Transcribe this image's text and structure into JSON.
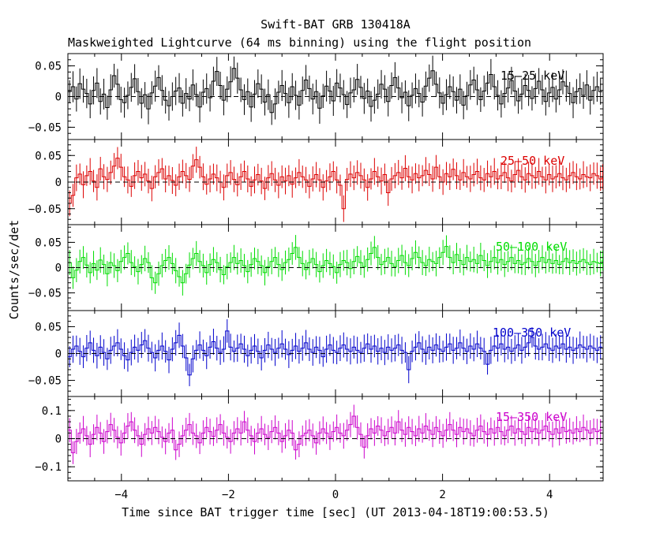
{
  "title": "Swift-BAT GRB 130418A",
  "subtitle": "Maskweighted Lightcurve (64 ms binning) using the flight position",
  "chart_data": {
    "type": "line",
    "title": "Swift-BAT GRB 130418A",
    "subtitle": "Maskweighted Lightcurve (64 ms binning) using the flight position",
    "xlabel": "Time since BAT trigger time [sec] (UT 2013-04-18T19:00:53.5)",
    "ylabel": "Counts/sec/det",
    "xlim": [
      -5,
      5
    ],
    "x_ticks": [
      -4,
      -2,
      0,
      2,
      4
    ],
    "x_tick_labels": [
      "−4",
      "−2",
      "0",
      "2",
      "4"
    ],
    "bin_width": 0.064,
    "x_start": -5.0,
    "plot_style": "histogram steps with vertical error bars, dashed zero line",
    "panels": [
      {
        "name": "15–25 keV",
        "color": "#000000",
        "ylim": [
          -0.07,
          0.07
        ],
        "y_ticks": [
          -0.05,
          0,
          0.05
        ],
        "y_tick_labels": [
          "−0.05",
          "0",
          "0.05"
        ],
        "error": 0.022,
        "values": [
          0.008,
          0.016,
          -0.004,
          0.021,
          0.012,
          0.005,
          -0.012,
          0.01,
          0.022,
          -0.008,
          0.004,
          -0.018,
          0.011,
          0.034,
          0.02,
          -0.005,
          -0.01,
          0.002,
          0.015,
          0.029,
          0.008,
          -0.011,
          0.003,
          -0.02,
          0.006,
          0.017,
          0.031,
          0.01,
          -0.006,
          -0.015,
          0.0,
          0.009,
          0.014,
          -0.011,
          0.005,
          -0.004,
          0.019,
          0.003,
          -0.017,
          0.007,
          0.013,
          -0.002,
          0.025,
          0.041,
          0.018,
          -0.006,
          0.012,
          0.024,
          0.046,
          0.03,
          0.011,
          -0.005,
          0.008,
          -0.017,
          0.004,
          0.021,
          0.012,
          -0.009,
          0.003,
          -0.026,
          -0.012,
          0.007,
          0.018,
          0.005,
          -0.01,
          0.016,
          0.002,
          -0.014,
          0.01,
          0.027,
          0.013,
          -0.004,
          0.008,
          -0.019,
          0.001,
          0.017,
          0.009,
          -0.007,
          0.022,
          0.014,
          0.003,
          -0.013,
          0.006,
          0.011,
          0.028,
          0.015,
          -0.003,
          0.009,
          -0.016,
          -0.006,
          0.004,
          0.02,
          0.012,
          -0.008,
          0.018,
          0.031,
          0.014,
          -0.002,
          0.007,
          -0.015,
          0.002,
          0.013,
          0.005,
          -0.009,
          0.017,
          0.03,
          0.042,
          0.02,
          0.006,
          -0.011,
          0.003,
          0.016,
          0.008,
          -0.006,
          0.012,
          -0.014,
          0.001,
          0.019,
          0.027,
          0.011,
          -0.005,
          0.009,
          0.022,
          0.036,
          0.016,
          0.002,
          -0.012,
          0.005,
          0.014,
          0.026,
          0.009,
          -0.007,
          0.004,
          0.018,
          0.01,
          -0.003,
          0.013,
          0.025,
          0.011,
          -0.008,
          0.006,
          0.015,
          -0.004,
          0.011,
          0.024,
          0.017,
          0.005,
          -0.01,
          0.008,
          0.013,
          0.002,
          0.019,
          -0.006,
          0.01,
          0.016,
          0.008
        ]
      },
      {
        "name": "25–50 keV",
        "color": "#dd0000",
        "ylim": [
          -0.08,
          0.08
        ],
        "y_ticks": [
          -0.05,
          0,
          0.05
        ],
        "y_tick_labels": [
          "−0.05",
          "0",
          "0.05"
        ],
        "error": 0.022,
        "values": [
          -0.04,
          -0.025,
          0.008,
          0.015,
          -0.005,
          0.012,
          0.02,
          0.002,
          -0.01,
          0.025,
          0.01,
          0.005,
          0.018,
          0.03,
          0.045,
          0.028,
          0.01,
          0.004,
          -0.008,
          0.012,
          0.02,
          0.008,
          0.015,
          0.002,
          -0.012,
          0.01,
          0.018,
          0.025,
          0.006,
          0.012,
          0.003,
          -0.006,
          0.01,
          0.02,
          0.012,
          0.005,
          0.03,
          0.042,
          0.028,
          0.01,
          -0.004,
          0.006,
          0.015,
          0.008,
          0.0,
          -0.01,
          0.012,
          0.018,
          0.005,
          -0.005,
          0.01,
          0.02,
          0.006,
          -0.008,
          0.004,
          0.014,
          0.002,
          -0.012,
          0.008,
          0.016,
          0.004,
          -0.006,
          0.01,
          0.002,
          0.012,
          -0.004,
          0.008,
          0.018,
          0.01,
          0.004,
          -0.008,
          0.006,
          0.014,
          0.004,
          -0.01,
          0.002,
          0.01,
          0.02,
          0.004,
          -0.006,
          -0.05,
          0.005,
          0.015,
          0.008,
          0.018,
          0.012,
          0.004,
          -0.01,
          0.006,
          0.02,
          0.01,
          0.002,
          0.014,
          -0.02,
          0.006,
          0.012,
          0.018,
          0.008,
          0.026,
          0.01,
          0.004,
          0.016,
          0.008,
          0.012,
          0.022,
          0.014,
          0.006,
          0.028,
          0.01,
          0.0,
          0.016,
          0.01,
          0.024,
          0.012,
          0.004,
          0.018,
          0.01,
          0.006,
          0.014,
          0.02,
          0.008,
          0.004,
          0.016,
          0.01,
          0.02,
          0.006,
          0.012,
          0.018,
          0.008,
          0.002,
          0.014,
          0.022,
          0.01,
          0.004,
          0.016,
          0.012,
          0.008,
          0.02,
          0.01,
          0.004,
          0.014,
          0.006,
          0.01,
          0.016,
          0.008,
          0.004,
          0.012,
          0.018,
          0.01,
          0.006,
          0.014,
          0.01,
          0.008,
          0.016,
          0.012,
          0.006,
          0.01,
          0.014
        ]
      },
      {
        "name": "50–100 keV",
        "color": "#00dd00",
        "ylim": [
          -0.085,
          0.085
        ],
        "y_ticks": [
          -0.05,
          0,
          0.05
        ],
        "y_tick_labels": [
          "−0.05",
          "0",
          "0.05"
        ],
        "error": 0.022,
        "values": [
          0.01,
          -0.02,
          -0.005,
          0.012,
          0.02,
          0.005,
          -0.01,
          0.008,
          -0.005,
          0.015,
          0.006,
          -0.012,
          0.01,
          0.004,
          -0.006,
          0.012,
          0.02,
          0.028,
          0.01,
          0.002,
          -0.008,
          0.006,
          0.018,
          0.01,
          -0.02,
          -0.03,
          -0.012,
          0.004,
          0.014,
          0.02,
          0.008,
          -0.006,
          -0.018,
          -0.03,
          -0.012,
          0.005,
          0.018,
          0.028,
          0.012,
          0.004,
          -0.01,
          0.006,
          0.016,
          0.01,
          -0.004,
          -0.014,
          0.002,
          0.01,
          0.02,
          0.008,
          0.014,
          0.004,
          -0.008,
          0.006,
          0.018,
          0.012,
          0.004,
          -0.01,
          0.002,
          0.012,
          0.02,
          0.006,
          -0.004,
          0.01,
          0.016,
          0.028,
          0.04,
          0.02,
          0.008,
          -0.004,
          0.01,
          0.018,
          0.006,
          -0.008,
          0.004,
          0.014,
          0.008,
          0.002,
          -0.01,
          0.006,
          0.014,
          0.01,
          -0.002,
          0.012,
          0.022,
          0.01,
          0.002,
          0.016,
          0.028,
          0.04,
          0.02,
          0.006,
          0.012,
          0.02,
          0.008,
          0.002,
          0.014,
          0.024,
          0.01,
          0.004,
          0.018,
          0.03,
          0.02,
          0.01,
          0.004,
          0.016,
          0.012,
          0.008,
          0.02,
          0.03,
          0.042,
          0.02,
          0.01,
          0.026,
          0.014,
          0.006,
          0.02,
          0.012,
          0.016,
          0.008,
          0.024,
          0.014,
          0.004,
          0.012,
          0.02,
          0.01,
          0.016,
          0.006,
          0.012,
          0.02,
          0.008,
          0.014,
          0.006,
          0.01,
          0.018,
          0.012,
          0.004,
          0.012,
          0.02,
          0.01,
          0.016,
          0.008,
          0.014,
          0.006,
          0.012,
          0.018,
          0.01,
          0.014,
          0.008,
          0.012,
          0.016,
          0.01,
          0.006,
          0.012,
          0.01,
          0.008,
          0.014,
          0.012
        ]
      },
      {
        "name": "100–350 keV",
        "color": "#0000cc",
        "ylim": [
          -0.08,
          0.08
        ],
        "y_ticks": [
          -0.05,
          0,
          0.05
        ],
        "y_tick_labels": [
          "−0.05",
          "0",
          "0.05"
        ],
        "error": 0.022,
        "values": [
          -0.006,
          0.008,
          0.014,
          0.004,
          -0.006,
          0.01,
          0.02,
          0.006,
          -0.004,
          0.012,
          0.002,
          -0.01,
          0.006,
          0.014,
          0.02,
          0.008,
          -0.004,
          -0.012,
          0.002,
          0.012,
          0.006,
          0.016,
          0.024,
          0.01,
          0.002,
          -0.008,
          0.006,
          0.014,
          0.004,
          -0.012,
          0.008,
          0.02,
          0.034,
          0.014,
          -0.008,
          -0.04,
          -0.01,
          0.006,
          0.016,
          0.006,
          -0.004,
          0.012,
          0.022,
          0.01,
          0.002,
          0.008,
          0.042,
          0.012,
          0.004,
          0.01,
          0.018,
          0.008,
          -0.004,
          0.006,
          0.014,
          0.004,
          -0.008,
          0.006,
          0.016,
          0.008,
          0.002,
          0.01,
          0.018,
          0.008,
          -0.002,
          0.006,
          0.014,
          0.004,
          0.01,
          0.02,
          0.008,
          0.002,
          0.012,
          0.006,
          -0.006,
          0.008,
          0.016,
          0.006,
          0.002,
          0.01,
          0.016,
          0.008,
          0.004,
          0.012,
          0.006,
          0.002,
          0.01,
          0.018,
          0.008,
          0.014,
          0.004,
          0.01,
          0.002,
          0.012,
          0.006,
          0.01,
          0.016,
          0.006,
          0.002,
          -0.03,
          0.004,
          0.012,
          0.02,
          0.008,
          0.002,
          0.012,
          0.006,
          0.016,
          0.008,
          0.004,
          0.012,
          0.018,
          0.006,
          0.01,
          0.02,
          0.01,
          0.004,
          0.014,
          0.008,
          0.018,
          0.01,
          0.004,
          -0.02,
          0.006,
          0.014,
          0.01,
          0.018,
          0.008,
          0.012,
          0.004,
          0.01,
          0.016,
          0.006,
          0.012,
          0.02,
          0.03,
          0.014,
          0.008,
          0.012,
          0.018,
          0.01,
          0.006,
          0.014,
          0.01,
          0.018,
          0.008,
          0.012,
          0.006,
          0.01,
          0.016,
          0.012,
          0.008,
          0.014,
          0.01,
          0.006,
          0.012
        ]
      },
      {
        "name": "15–350 keV",
        "color": "#cc00cc",
        "ylim": [
          -0.15,
          0.15
        ],
        "y_ticks": [
          -0.1,
          0,
          0.1
        ],
        "y_tick_labels": [
          "−0.1",
          "0",
          "0.1"
        ],
        "error": 0.04,
        "values": [
          0.03,
          -0.05,
          -0.01,
          0.02,
          0.035,
          0.01,
          -0.02,
          0.015,
          0.04,
          0.02,
          -0.01,
          0.025,
          0.05,
          0.03,
          0.005,
          -0.015,
          0.02,
          0.045,
          0.06,
          0.03,
          0.01,
          -0.02,
          0.015,
          0.035,
          0.02,
          0.04,
          0.025,
          0.005,
          -0.01,
          0.02,
          0.03,
          -0.04,
          -0.02,
          0.01,
          0.03,
          0.05,
          0.02,
          0.01,
          -0.015,
          0.02,
          0.04,
          0.025,
          0.008,
          0.03,
          0.05,
          0.02,
          0.005,
          -0.01,
          0.02,
          0.035,
          0.02,
          0.06,
          0.03,
          0.01,
          -0.01,
          0.02,
          0.035,
          0.015,
          0.004,
          0.025,
          0.04,
          0.02,
          -0.01,
          0.01,
          0.03,
          0.02,
          -0.04,
          -0.02,
          0.01,
          0.02,
          0.03,
          0.01,
          -0.015,
          0.02,
          0.035,
          0.02,
          0.005,
          0.025,
          0.04,
          0.02,
          0.01,
          0.03,
          0.05,
          0.08,
          0.04,
          0.015,
          -0.03,
          0.01,
          0.035,
          0.02,
          0.045,
          0.03,
          0.01,
          0.025,
          0.04,
          0.02,
          0.06,
          0.03,
          0.015,
          0.04,
          0.025,
          0.01,
          0.035,
          0.02,
          0.045,
          0.03,
          0.015,
          0.04,
          0.025,
          0.01,
          0.03,
          0.05,
          0.03,
          0.015,
          0.04,
          0.025,
          0.035,
          0.02,
          0.01,
          0.03,
          0.045,
          0.025,
          0.015,
          0.035,
          0.02,
          0.04,
          0.025,
          0.01,
          0.03,
          0.045,
          0.02,
          0.035,
          0.025,
          0.015,
          0.04,
          0.025,
          0.035,
          0.02,
          0.03,
          0.045,
          0.025,
          0.015,
          0.035,
          0.02,
          0.04,
          0.025,
          0.03,
          0.02,
          0.035,
          0.025,
          0.04,
          0.03,
          0.02,
          0.035,
          0.025,
          0.03
        ]
      }
    ]
  }
}
